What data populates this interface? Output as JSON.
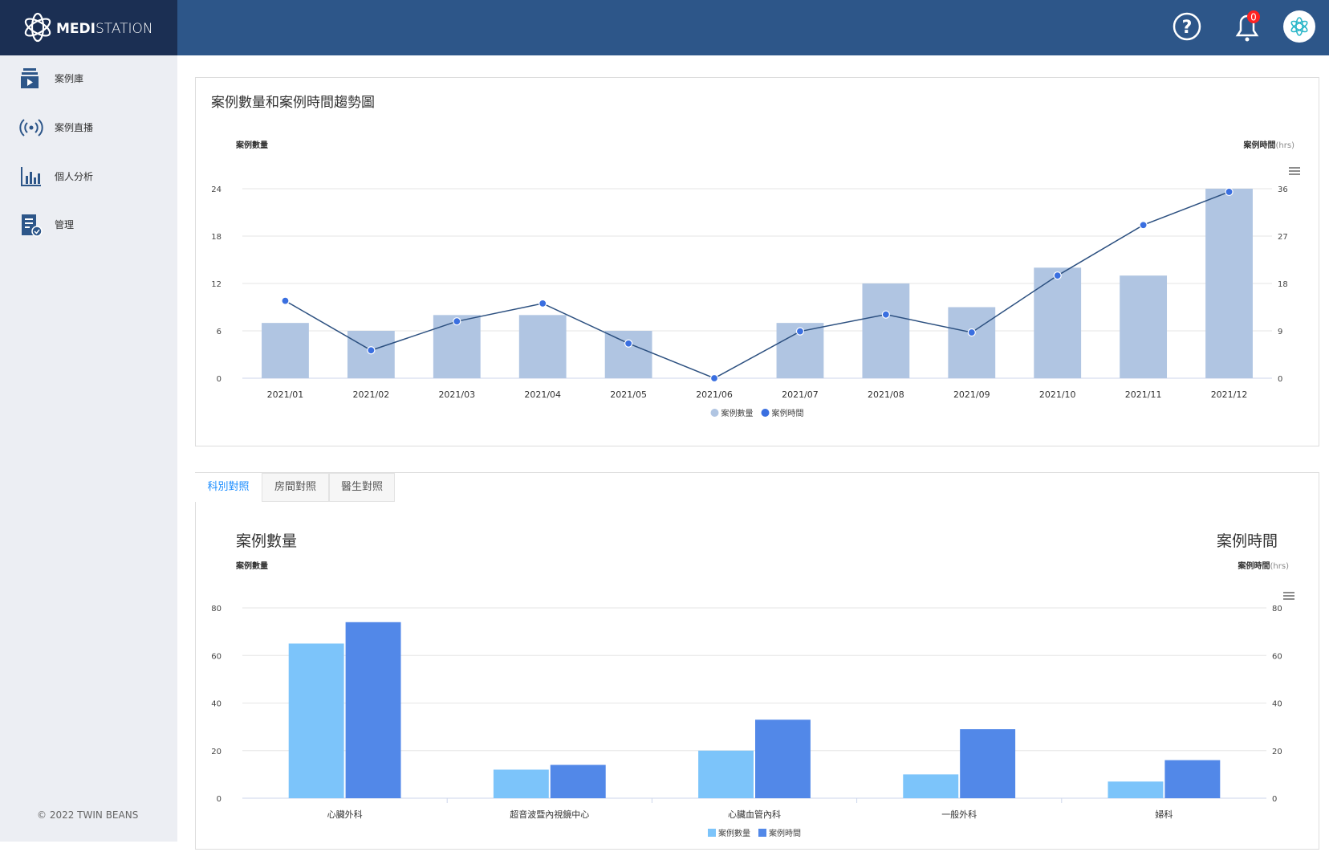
{
  "app": {
    "logo_bold": "MEDI",
    "logo_light": "STATION",
    "notifications": 0,
    "nav": [
      "案例庫",
      "案例直播",
      "個人分析",
      "管理"
    ],
    "footer": "© 2022 TWIN BEANS",
    "tabs": [
      "科別對照",
      "房間對照",
      "醫生對照"
    ],
    "active_tab": 0
  },
  "chart_data": [
    {
      "type": "bar",
      "title": "案例數量和案例時間趨勢圖",
      "ylabel": "案例數量",
      "y2label": "案例時間",
      "y2label_unit": "(hrs)",
      "categories": [
        "2021/01",
        "2021/02",
        "2021/03",
        "2021/04",
        "2021/05",
        "2021/06",
        "2021/07",
        "2021/08",
        "2021/09",
        "2021/10",
        "2021/11",
        "2021/12"
      ],
      "series": [
        {
          "name": "案例數量",
          "type": "bar",
          "color": "#b0c5e2",
          "values": [
            7,
            6,
            8,
            8,
            6,
            0,
            7,
            12,
            9,
            14,
            13,
            24
          ]
        },
        {
          "name": "案例時間",
          "type": "line",
          "axis": "y2",
          "color": "#2c5080",
          "marker_color": "#3a6fe0",
          "values": [
            14.7,
            5.3,
            10.8,
            14.2,
            6.6,
            0,
            8.9,
            12.1,
            8.7,
            19.5,
            29.1,
            35.4
          ]
        }
      ],
      "ylim": [
        0,
        24
      ],
      "yticks": [
        0,
        6,
        12,
        18,
        24
      ],
      "y2lim": [
        0,
        36
      ],
      "y2ticks": [
        0,
        9,
        18,
        27,
        36
      ],
      "grid": true,
      "legend": "bottom",
      "legend_marker": "circle"
    },
    {
      "type": "bar",
      "title": "案例數量",
      "title_right": "案例時間",
      "ylabel": "案例數量",
      "y2label": "案例時間",
      "y2label_unit": "(hrs)",
      "categories": [
        "心臟外科",
        "超音波暨內視鏡中心",
        "心臟血管內科",
        "一般外科",
        "婦科"
      ],
      "series": [
        {
          "name": "案例數量",
          "type": "bar",
          "color": "#7cc4fa",
          "values": [
            65,
            12,
            20,
            10,
            7
          ]
        },
        {
          "name": "案例時間",
          "type": "bar",
          "axis": "y2",
          "color": "#5288e8",
          "values": [
            74,
            14,
            33,
            29,
            16
          ]
        }
      ],
      "ylim": [
        0,
        80
      ],
      "yticks": [
        0,
        20,
        40,
        60,
        80
      ],
      "y2lim": [
        0,
        80
      ],
      "y2ticks": [
        0,
        20,
        40,
        60,
        80
      ],
      "grid": true,
      "legend": "bottom",
      "legend_marker": "square"
    }
  ]
}
